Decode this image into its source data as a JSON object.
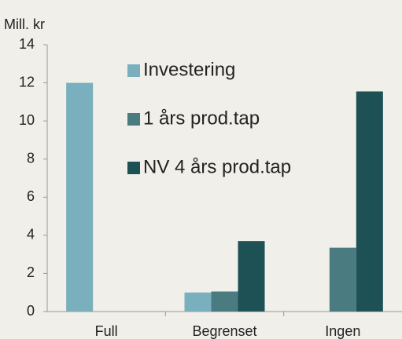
{
  "chart_data": {
    "type": "bar",
    "y_label": "Mill. kr",
    "categories": [
      "Full",
      "Begrenset",
      "Ingen"
    ],
    "series": [
      {
        "name": "Investering",
        "color": "#7ab0bd",
        "values": [
          12,
          1.0,
          0
        ]
      },
      {
        "name": "1 års prod.tap",
        "color": "#4a7b80",
        "values": [
          0,
          1.05,
          3.35
        ]
      },
      {
        "name": "NV 4 års prod.tap",
        "color": "#1e5156",
        "values": [
          0,
          3.7,
          11.55
        ]
      }
    ],
    "ylim": [
      0,
      14
    ],
    "yticks": [
      0,
      2,
      4,
      6,
      8,
      10,
      12,
      14
    ],
    "grid": false,
    "legend": "top-left"
  }
}
